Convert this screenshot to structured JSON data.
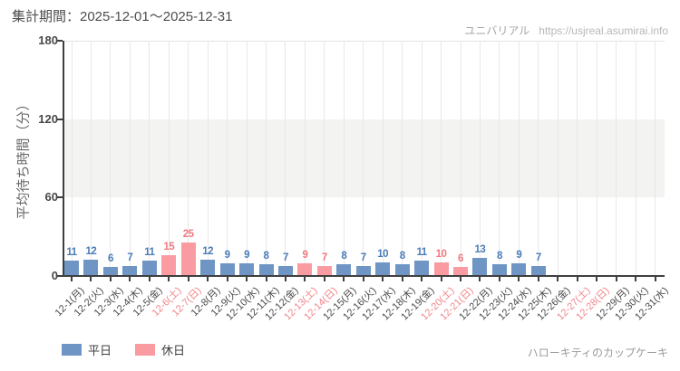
{
  "header": {
    "period_label": "集計期間：2025-12-01～2025-12-31",
    "brand": "ユニバリアル",
    "url": "https://usjreal.asumirai.info"
  },
  "chart_data": {
    "type": "bar",
    "title": "",
    "ylabel": "平均待ち時間（分）",
    "xlabel": "",
    "ylim": [
      0,
      180
    ],
    "yticks": [
      0,
      60,
      120,
      180
    ],
    "shaded_band": [
      60,
      120
    ],
    "grid": "vertical-per-category",
    "legend_position": "bottom-left",
    "categories": [
      "12-1(月)",
      "12-2(火)",
      "12-3(水)",
      "12-4(木)",
      "12-5(金)",
      "12-6(土)",
      "12-7(日)",
      "12-8(月)",
      "12-9(火)",
      "12-10(水)",
      "12-11(木)",
      "12-12(金)",
      "12-13(土)",
      "12-14(日)",
      "12-15(月)",
      "12-16(火)",
      "12-17(水)",
      "12-18(木)",
      "12-19(金)",
      "12-20(土)",
      "12-21(日)",
      "12-22(月)",
      "12-23(火)",
      "12-24(水)",
      "12-25(木)",
      "12-26(金)",
      "12-27(土)",
      "12-28(日)",
      "12-29(月)",
      "12-30(火)",
      "12-31(水)"
    ],
    "values": [
      11,
      12,
      6,
      7,
      11,
      15,
      25,
      12,
      9,
      9,
      8,
      7,
      9,
      7,
      8,
      7,
      10,
      8,
      11,
      10,
      6,
      13,
      8,
      9,
      7,
      null,
      null,
      null,
      null,
      null,
      null
    ],
    "day_types": [
      "weekday",
      "weekday",
      "weekday",
      "weekday",
      "weekday",
      "holiday",
      "holiday",
      "weekday",
      "weekday",
      "weekday",
      "weekday",
      "weekday",
      "holiday",
      "holiday",
      "weekday",
      "weekday",
      "weekday",
      "weekday",
      "weekday",
      "holiday",
      "holiday",
      "weekday",
      "weekday",
      "weekday",
      "weekday",
      "weekday",
      "holiday",
      "holiday",
      "weekday",
      "weekday",
      "weekday"
    ]
  },
  "legend": {
    "weekday_label": "平日",
    "holiday_label": "休日"
  },
  "footer": {
    "attraction_label": "ハローキティのカップケーキ"
  },
  "colors": {
    "weekday_bar": "#6e95c3",
    "holiday_bar": "#f99ba1",
    "weekday_value_label": "#4a7cb8",
    "holiday_value_label": "#f2797f",
    "weekday_tick_label": "#4a4a4a",
    "holiday_tick_label": "#f0868b",
    "axis": "#3f3f3f",
    "band_fill": "#f3f3f1"
  }
}
